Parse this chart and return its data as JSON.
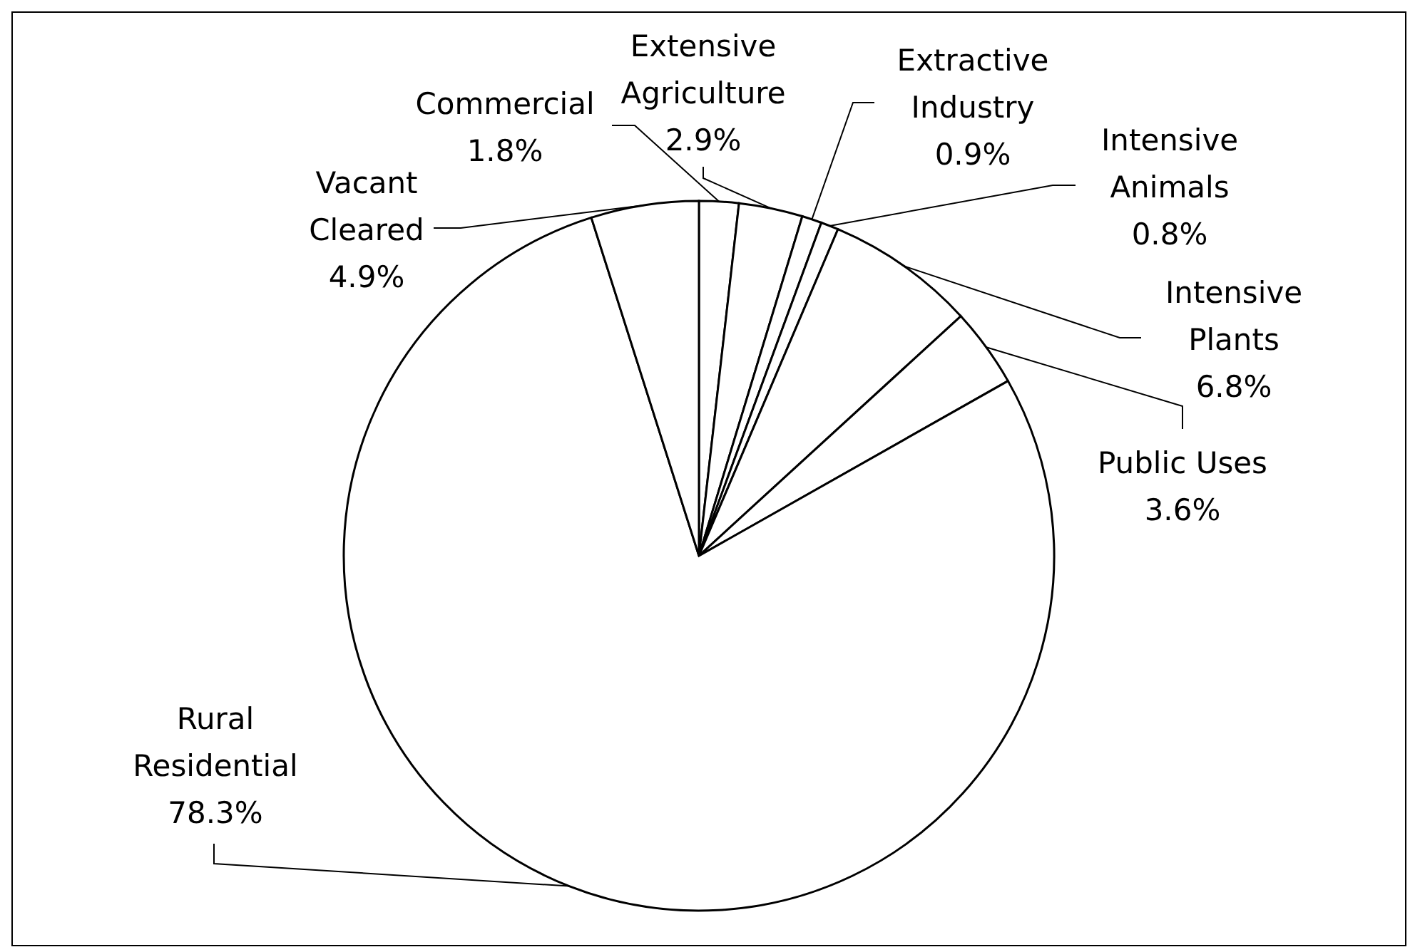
{
  "chart_data": {
    "type": "pie",
    "categories": [
      "Commercial",
      "Extensive Agriculture",
      "Extractive Industry",
      "Intensive Animals",
      "Intensive Plants",
      "Public Uses",
      "Rural Residential",
      "Vacant Cleared"
    ],
    "values": [
      1.8,
      2.9,
      0.9,
      0.8,
      6.8,
      3.6,
      78.3,
      4.9
    ],
    "colors": [
      "#ffffff",
      "#ffffff",
      "#ffffff",
      "#ffffff",
      "#ffffff",
      "#ffffff",
      "#ffffff",
      "#ffffff"
    ],
    "value_labels": [
      "1.8%",
      "2.9%",
      "0.9%",
      "0.8%",
      "6.8%",
      "3.6%",
      "78.3%",
      "4.9%"
    ]
  }
}
